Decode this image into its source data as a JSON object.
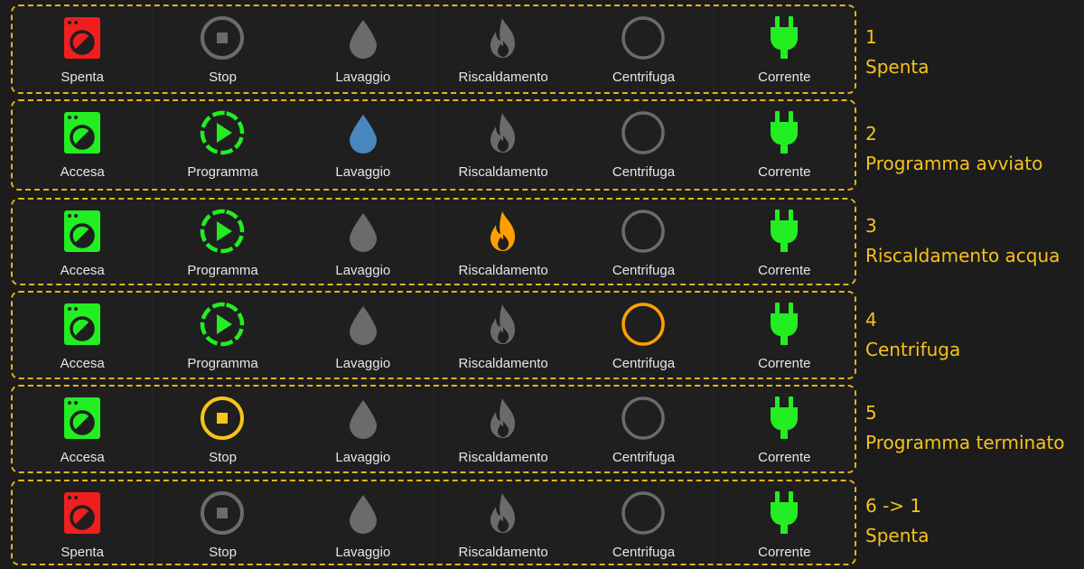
{
  "colors": {
    "off_red": "#f01e1e",
    "on_green": "#22ee22",
    "inactive_gray": "#6b6b6b",
    "water_blue": "#4a86c0",
    "heat_orange": "#ffa000",
    "spin_orange": "#ffa000",
    "stop_yellow": "#f5c518",
    "dashed_border": "#e5b41a",
    "caption_text": "#f7c21d"
  },
  "states": [
    {
      "number": "1",
      "title": "Spenta",
      "tiles": [
        {
          "label": "Spenta",
          "icon": "washing-machine-icon",
          "icon_state": "off"
        },
        {
          "label": "Stop",
          "icon": "stop-circle-icon",
          "icon_state": "inactive"
        },
        {
          "label": "Lavaggio",
          "icon": "water-drop-icon",
          "icon_state": "inactive"
        },
        {
          "label": "Riscaldamento",
          "icon": "fire-icon",
          "icon_state": "inactive"
        },
        {
          "label": "Centrifuga",
          "icon": "spin-ring-icon",
          "icon_state": "inactive"
        },
        {
          "label": "Corrente",
          "icon": "power-plug-icon",
          "icon_state": "on"
        }
      ]
    },
    {
      "number": "2",
      "title": "Programma avviato",
      "tiles": [
        {
          "label": "Accesa",
          "icon": "washing-machine-icon",
          "icon_state": "on"
        },
        {
          "label": "Programma",
          "icon": "play-circle-dashed-icon",
          "icon_state": "on"
        },
        {
          "label": "Lavaggio",
          "icon": "water-drop-icon",
          "icon_state": "active"
        },
        {
          "label": "Riscaldamento",
          "icon": "fire-icon",
          "icon_state": "inactive"
        },
        {
          "label": "Centrifuga",
          "icon": "spin-ring-icon",
          "icon_state": "inactive"
        },
        {
          "label": "Corrente",
          "icon": "power-plug-icon",
          "icon_state": "on"
        }
      ]
    },
    {
      "number": "3",
      "title": "Riscaldamento acqua",
      "tiles": [
        {
          "label": "Accesa",
          "icon": "washing-machine-icon",
          "icon_state": "on"
        },
        {
          "label": "Programma",
          "icon": "play-circle-dashed-icon",
          "icon_state": "on"
        },
        {
          "label": "Lavaggio",
          "icon": "water-drop-icon",
          "icon_state": "inactive"
        },
        {
          "label": "Riscaldamento",
          "icon": "fire-icon",
          "icon_state": "active"
        },
        {
          "label": "Centrifuga",
          "icon": "spin-ring-icon",
          "icon_state": "inactive"
        },
        {
          "label": "Corrente",
          "icon": "power-plug-icon",
          "icon_state": "on"
        }
      ]
    },
    {
      "number": "4",
      "title": "Centrifuga",
      "tiles": [
        {
          "label": "Accesa",
          "icon": "washing-machine-icon",
          "icon_state": "on"
        },
        {
          "label": "Programma",
          "icon": "play-circle-dashed-icon",
          "icon_state": "on"
        },
        {
          "label": "Lavaggio",
          "icon": "water-drop-icon",
          "icon_state": "inactive"
        },
        {
          "label": "Riscaldamento",
          "icon": "fire-icon",
          "icon_state": "inactive"
        },
        {
          "label": "Centrifuga",
          "icon": "spin-ring-icon",
          "icon_state": "active"
        },
        {
          "label": "Corrente",
          "icon": "power-plug-icon",
          "icon_state": "on"
        }
      ]
    },
    {
      "number": "5",
      "title": "Programma terminato",
      "tiles": [
        {
          "label": "Accesa",
          "icon": "washing-machine-icon",
          "icon_state": "on"
        },
        {
          "label": "Stop",
          "icon": "stop-circle-icon",
          "icon_state": "active"
        },
        {
          "label": "Lavaggio",
          "icon": "water-drop-icon",
          "icon_state": "inactive"
        },
        {
          "label": "Riscaldamento",
          "icon": "fire-icon",
          "icon_state": "inactive"
        },
        {
          "label": "Centrifuga",
          "icon": "spin-ring-icon",
          "icon_state": "inactive"
        },
        {
          "label": "Corrente",
          "icon": "power-plug-icon",
          "icon_state": "on"
        }
      ]
    },
    {
      "number": "6 -> 1",
      "title": "Spenta",
      "tiles": [
        {
          "label": "Spenta",
          "icon": "washing-machine-icon",
          "icon_state": "off"
        },
        {
          "label": "Stop",
          "icon": "stop-circle-icon",
          "icon_state": "inactive"
        },
        {
          "label": "Lavaggio",
          "icon": "water-drop-icon",
          "icon_state": "inactive"
        },
        {
          "label": "Riscaldamento",
          "icon": "fire-icon",
          "icon_state": "inactive"
        },
        {
          "label": "Centrifuga",
          "icon": "spin-ring-icon",
          "icon_state": "inactive"
        },
        {
          "label": "Corrente",
          "icon": "power-plug-icon",
          "icon_state": "on"
        }
      ]
    }
  ]
}
